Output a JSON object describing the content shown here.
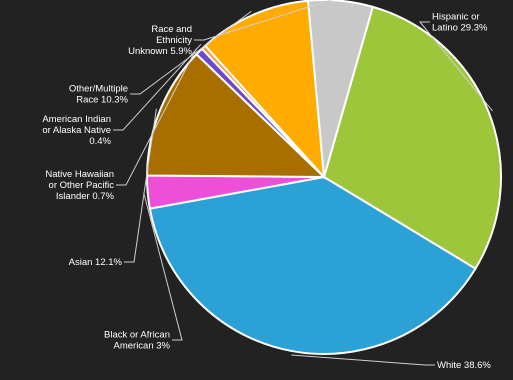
{
  "chart_data": {
    "type": "pie",
    "title": "",
    "slices": [
      {
        "label": [
          "Hispanic or",
          "Latino 29.3%"
        ],
        "value": 29.3,
        "color": "#9dc63a"
      },
      {
        "label": [
          "White 38.6%"
        ],
        "value": 38.6,
        "color": "#2ba1d6"
      },
      {
        "label": [
          "Black or African",
          "American 3%"
        ],
        "value": 3.0,
        "color": "#ee4fd8"
      },
      {
        "label": [
          "Asian 12.1%"
        ],
        "value": 12.1,
        "color": "#a86e00"
      },
      {
        "label": [
          "Native Hawaiian",
          "or Other Pacific",
          "Islander 0.7%"
        ],
        "value": 0.7,
        "color": "#6b49c9"
      },
      {
        "label": [
          "American Indian",
          "or Alaska Native",
          "0.4%"
        ],
        "value": 0.4,
        "color": "#ff9a2e"
      },
      {
        "label": [
          "Other/Multiple",
          "Race 10.3%"
        ],
        "value": 10.3,
        "color": "#ffab00"
      },
      {
        "label": [
          "Race and",
          "Ethnicity",
          "Unknown 5.9%"
        ],
        "value": 5.9,
        "color": "#c8c8c8"
      }
    ]
  }
}
